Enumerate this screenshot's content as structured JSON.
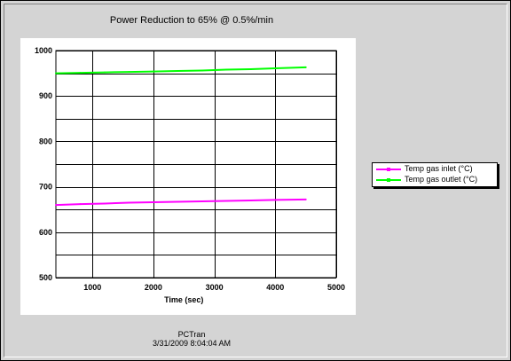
{
  "chart_data": {
    "type": "line",
    "title": "Power Reduction to 65% @ 0.5%/min",
    "xlabel": "Time (sec)",
    "ylabel": "",
    "xlim": [
      400,
      5000
    ],
    "ylim": [
      500,
      1000
    ],
    "x_ticks": [
      1000,
      2000,
      3000,
      4000,
      5000
    ],
    "y_ticks": [
      500,
      600,
      700,
      800,
      900,
      1000
    ],
    "grid": true,
    "legend_position": "right",
    "series": [
      {
        "name": "Temp gas inlet (°C)",
        "color": "#ff00ff",
        "x": [
          400,
          800,
          1200,
          1600,
          2000,
          2400,
          2800,
          3200,
          3600,
          4000,
          4500
        ],
        "y": [
          660,
          662,
          663,
          665,
          666,
          667,
          668,
          669,
          670,
          671,
          672
        ]
      },
      {
        "name": "Temp gas outlet (°C)",
        "color": "#00ff00",
        "x": [
          400,
          800,
          1200,
          1600,
          2000,
          2400,
          2800,
          3200,
          3600,
          4000,
          4500
        ],
        "y": [
          950,
          951,
          952,
          953,
          954,
          955,
          956,
          958,
          959,
          961,
          963
        ]
      }
    ]
  },
  "legend": {
    "inlet_label": "Temp gas inlet (°C)",
    "outlet_label": "Temp gas outlet (°C)"
  },
  "footer": {
    "app": "PCTran",
    "timestamp": "3/31/2009 8:04:04 AM"
  }
}
